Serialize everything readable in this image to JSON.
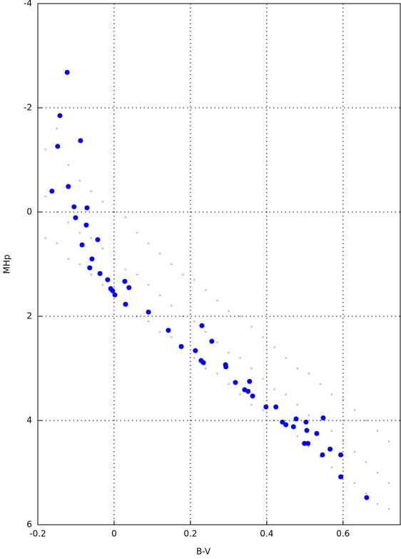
{
  "chart_data": {
    "type": "scatter",
    "x_label": "B-V",
    "y_label": "MHp",
    "xlim": [
      -0.2,
      0.75
    ],
    "xticks": [
      -0.2,
      0,
      0.2,
      0.4,
      0.6
    ],
    "ylim": [
      6,
      -4
    ],
    "yticks": [
      -4,
      -2,
      0,
      2,
      4,
      6
    ],
    "grid": true,
    "series": [
      {
        "color": "#aaaaaa",
        "marker_size": 1.2,
        "x": [
          -0.18,
          -0.18,
          -0.18,
          -0.15,
          -0.15,
          -0.15,
          -0.12,
          -0.12,
          -0.12,
          -0.09,
          -0.09,
          -0.09,
          -0.06,
          -0.06,
          -0.06,
          -0.03,
          -0.03,
          -0.03,
          0,
          0,
          0,
          0.03,
          0.03,
          0.03,
          0.06,
          0.06,
          0.06,
          0.09,
          0.09,
          0.09,
          0.12,
          0.12,
          0.12,
          0.15,
          0.15,
          0.15,
          0.18,
          0.18,
          0.18,
          0.21,
          0.21,
          0.21,
          0.24,
          0.24,
          0.24,
          0.27,
          0.27,
          0.27,
          0.3,
          0.3,
          0.3,
          0.33,
          0.33,
          0.33,
          0.36,
          0.36,
          0.36,
          0.39,
          0.39,
          0.39,
          0.42,
          0.42,
          0.42,
          0.45,
          0.45,
          0.45,
          0.48,
          0.48,
          0.48,
          0.51,
          0.51,
          0.51,
          0.54,
          0.54,
          0.54,
          0.57,
          0.57,
          0.57,
          0.6,
          0.6,
          0.6,
          0.63,
          0.63,
          0.63,
          0.66,
          0.66,
          0.66,
          0.69,
          0.69,
          0.69,
          0.72,
          0.72,
          0.72
        ],
        "y": [
          -1.2,
          -0.3,
          0.5,
          -1.6,
          0.0,
          0.6,
          -0.9,
          0.2,
          0.9,
          -0.6,
          0.4,
          1.0,
          -0.4,
          0.5,
          1.2,
          -0.2,
          0.7,
          1.4,
          0.0,
          0.9,
          1.6,
          0.1,
          1.1,
          1.8,
          0.4,
          1.2,
          2.0,
          0.6,
          1.4,
          2.1,
          0.8,
          1.6,
          2.3,
          1.0,
          1.8,
          2.4,
          1.2,
          2.0,
          2.6,
          1.3,
          2.1,
          2.8,
          1.5,
          2.3,
          3.0,
          1.7,
          2.5,
          3.1,
          1.9,
          2.7,
          3.3,
          2.0,
          2.8,
          3.5,
          2.2,
          3.0,
          3.7,
          2.4,
          3.2,
          3.8,
          2.6,
          3.4,
          4.0,
          2.8,
          3.5,
          4.1,
          3.0,
          3.7,
          4.3,
          3.1,
          3.9,
          4.5,
          3.3,
          4.0,
          4.7,
          3.5,
          4.2,
          4.9,
          3.6,
          4.4,
          5.1,
          3.8,
          4.6,
          5.2,
          4.0,
          4.8,
          5.4,
          4.2,
          5.0,
          5.6,
          4.4,
          5.2,
          5.7
        ]
      },
      {
        "color": "#0000ee",
        "marker_size": 3.5,
        "x": [
          -0.123,
          -0.142,
          -0.148,
          -0.088,
          -0.163,
          -0.12,
          -0.105,
          -0.071,
          -0.101,
          -0.073,
          -0.043,
          -0.084,
          -0.058,
          -0.064,
          -0.037,
          -0.017,
          0.028,
          0.039,
          -0.009,
          -0.004,
          0.002,
          0.03,
          0.09,
          0.23,
          0.142,
          0.256,
          0.176,
          0.213,
          0.228,
          0.234,
          0.292,
          0.293,
          0.355,
          0.318,
          0.342,
          0.351,
          0.363,
          0.398,
          0.424,
          0.477,
          0.548,
          0.441,
          0.45,
          0.47,
          0.503,
          0.505,
          0.531,
          0.566,
          0.508,
          0.499,
          0.546,
          0.594,
          0.594,
          0.662
        ],
        "y": [
          -2.68,
          -1.85,
          -1.26,
          -1.37,
          -0.4,
          -0.49,
          -0.1,
          -0.08,
          0.11,
          0.25,
          0.53,
          0.63,
          0.9,
          1.07,
          1.18,
          1.3,
          1.33,
          1.45,
          1.47,
          1.51,
          1.59,
          1.77,
          1.92,
          2.18,
          2.27,
          2.48,
          2.58,
          2.66,
          2.85,
          2.89,
          2.93,
          2.97,
          3.25,
          3.27,
          3.41,
          3.44,
          3.53,
          3.74,
          3.74,
          3.97,
          3.95,
          4.03,
          4.08,
          4.12,
          4.03,
          4.19,
          4.25,
          4.55,
          4.44,
          4.44,
          4.66,
          4.66,
          5.08,
          5.48
        ]
      }
    ]
  }
}
